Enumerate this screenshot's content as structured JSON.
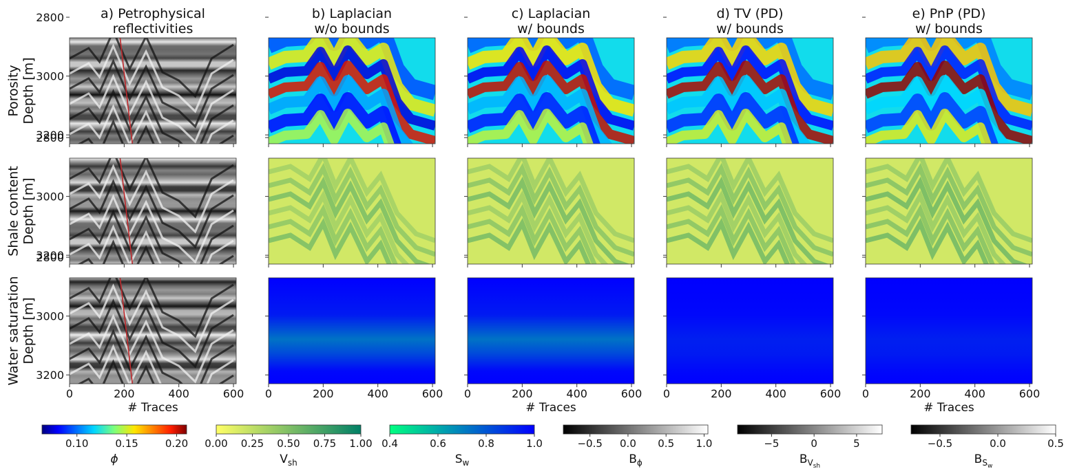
{
  "chart_data": {
    "type": "heatmap",
    "layout_rows": 3,
    "layout_cols": 5,
    "column_titles": [
      [
        "a) Petrophysical",
        "reflectivities"
      ],
      [
        "b) Laplacian",
        "w/o bounds"
      ],
      [
        "c) Laplacian",
        "w/ bounds"
      ],
      [
        "d) TV (PD)",
        "w/ bounds"
      ],
      [
        "e) PnP (PD)",
        "w/ bounds"
      ]
    ],
    "row_labels": [
      [
        "Porosity",
        "Depth [m]"
      ],
      [
        "Shale content",
        "Depth [m]"
      ],
      [
        "Water saturation",
        "Depth [m]"
      ]
    ],
    "xlabel": "# Traces",
    "xlim": [
      0,
      610
    ],
    "ylim": [
      3230,
      2870
    ],
    "xticks": [
      0,
      200,
      400,
      600
    ],
    "yticks": [
      2800,
      3000,
      3200
    ],
    "well_trace": 230,
    "colorbars": [
      {
        "label": "ϕ",
        "colormap": "jet",
        "range": [
          0.065,
          0.21
        ],
        "ticks": [
          0.1,
          0.15,
          0.2
        ],
        "tick_labels": [
          "0.10",
          "0.15",
          "0.20"
        ]
      },
      {
        "label": "V",
        "sub": "sh",
        "colormap": "summer_r",
        "range": [
          0,
          1
        ],
        "ticks": [
          0,
          0.25,
          0.5,
          0.75,
          1
        ],
        "tick_labels": [
          "0.00",
          "0.25",
          "0.50",
          "0.75",
          "1.00"
        ]
      },
      {
        "label": "S",
        "sub": "w",
        "colormap": "winter_r",
        "range": [
          0.4,
          1.0
        ],
        "ticks": [
          0.4,
          0.6,
          0.8,
          1.0
        ],
        "tick_labels": [
          "0.4",
          "0.6",
          "0.8",
          "1.0"
        ]
      },
      {
        "label": "B",
        "sub": "ϕ",
        "colormap": "gray",
        "range": [
          -0.85,
          1.05
        ],
        "ticks": [
          -0.5,
          0,
          0.5,
          1.0
        ],
        "tick_labels": [
          "−0.5",
          "0.0",
          "0.5",
          "1.0"
        ]
      },
      {
        "label": "B",
        "sub": "V",
        "subsub": "sh",
        "colormap": "gray",
        "range": [
          -9,
          8
        ],
        "ticks": [
          -5,
          0,
          5
        ],
        "tick_labels": [
          "−5",
          "0",
          "5"
        ]
      },
      {
        "label": "B",
        "sub": "S",
        "subsub": "w",
        "colormap": "gray",
        "range": [
          -0.75,
          0.5
        ],
        "ticks": [
          -0.5,
          0,
          0.5
        ],
        "tick_labels": [
          "−0.5",
          "0.0",
          "0.5"
        ]
      }
    ],
    "colors": {
      "well_line": "#c0282b",
      "axis": "#333333",
      "background": "#ffffff"
    }
  }
}
